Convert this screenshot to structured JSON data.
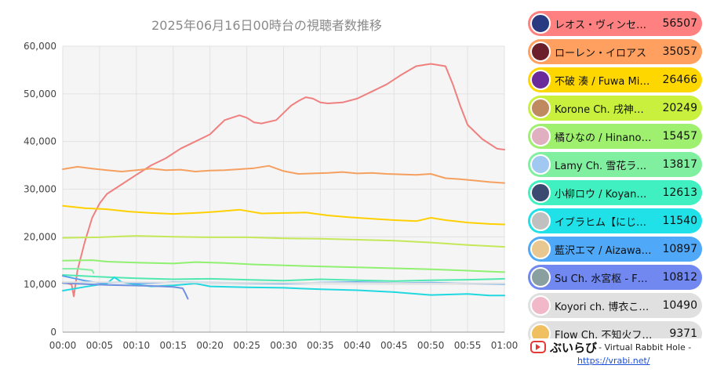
{
  "chart_data": {
    "type": "line",
    "title": "2025年06月16日00時台の視聴者数推移",
    "xlabel": "",
    "ylabel": "",
    "x_ticks": [
      "00:00",
      "00:05",
      "00:10",
      "00:15",
      "00:20",
      "00:25",
      "00:30",
      "00:35",
      "00:40",
      "00:45",
      "00:50",
      "00:55",
      "01:00"
    ],
    "y_ticks": [
      "0",
      "10,000",
      "20,000",
      "30,000",
      "40,000",
      "50,000",
      "60,000"
    ],
    "xlim": [
      0,
      60
    ],
    "ylim": [
      0,
      60000
    ],
    "grid": true,
    "legend_position": "right",
    "series": [
      {
        "name": "レオス・ヴィンセント",
        "color": "#f08080",
        "points": [
          [
            0,
            10500
          ],
          [
            1.2,
            10000
          ],
          [
            1.5,
            7500
          ],
          [
            2,
            13000
          ],
          [
            3,
            19000
          ],
          [
            4,
            24000
          ],
          [
            5,
            27000
          ],
          [
            6,
            29000
          ],
          [
            8,
            31000
          ],
          [
            10,
            33000
          ],
          [
            12,
            35000
          ],
          [
            14,
            36500
          ],
          [
            16,
            38500
          ],
          [
            18,
            40000
          ],
          [
            20,
            41500
          ],
          [
            21,
            43000
          ],
          [
            22,
            44500
          ],
          [
            24,
            45500
          ],
          [
            25,
            45000
          ],
          [
            26,
            44000
          ],
          [
            27,
            43800
          ],
          [
            29,
            44500
          ],
          [
            30,
            46000
          ],
          [
            31,
            47500
          ],
          [
            32,
            48500
          ],
          [
            33,
            49300
          ],
          [
            34,
            49000
          ],
          [
            35,
            48200
          ],
          [
            36,
            48000
          ],
          [
            38,
            48200
          ],
          [
            40,
            49000
          ],
          [
            42,
            50500
          ],
          [
            44,
            52000
          ],
          [
            46,
            54000
          ],
          [
            48,
            55800
          ],
          [
            50,
            56300
          ],
          [
            52,
            55800
          ],
          [
            53,
            52000
          ],
          [
            54,
            47500
          ],
          [
            55,
            43500
          ],
          [
            57,
            40500
          ],
          [
            59,
            38500
          ],
          [
            60,
            38300
          ]
        ]
      },
      {
        "name": "ローレン・イロアス",
        "color": "#f5a060",
        "points": [
          [
            0,
            34200
          ],
          [
            2,
            34700
          ],
          [
            4,
            34300
          ],
          [
            6,
            34000
          ],
          [
            8,
            33700
          ],
          [
            10,
            34000
          ],
          [
            12,
            34300
          ],
          [
            14,
            34000
          ],
          [
            16,
            34100
          ],
          [
            18,
            33700
          ],
          [
            20,
            33900
          ],
          [
            22,
            34000
          ],
          [
            24,
            34200
          ],
          [
            26,
            34400
          ],
          [
            28,
            34900
          ],
          [
            30,
            33800
          ],
          [
            32,
            33200
          ],
          [
            34,
            33300
          ],
          [
            36,
            33400
          ],
          [
            38,
            33600
          ],
          [
            40,
            33300
          ],
          [
            42,
            33400
          ],
          [
            44,
            33200
          ],
          [
            46,
            33100
          ],
          [
            48,
            33000
          ],
          [
            50,
            33200
          ],
          [
            52,
            32300
          ],
          [
            54,
            32100
          ],
          [
            56,
            31800
          ],
          [
            58,
            31500
          ],
          [
            60,
            31300
          ]
        ]
      },
      {
        "name": "不破 湊 / Fuwa Minato",
        "color": "#ffd000",
        "points": [
          [
            0,
            26500
          ],
          [
            3,
            26000
          ],
          [
            6,
            25800
          ],
          [
            9,
            25300
          ],
          [
            12,
            25000
          ],
          [
            15,
            24800
          ],
          [
            18,
            25000
          ],
          [
            21,
            25300
          ],
          [
            24,
            25700
          ],
          [
            27,
            24900
          ],
          [
            30,
            25000
          ],
          [
            33,
            25100
          ],
          [
            36,
            24500
          ],
          [
            39,
            24100
          ],
          [
            42,
            23800
          ],
          [
            45,
            23500
          ],
          [
            48,
            23300
          ],
          [
            50,
            24000
          ],
          [
            52,
            23500
          ],
          [
            55,
            23000
          ],
          [
            58,
            22700
          ],
          [
            60,
            22600
          ]
        ]
      },
      {
        "name": "Korone Ch. 戌神ころね",
        "color": "#c4e858",
        "points": [
          [
            0,
            19800
          ],
          [
            5,
            19900
          ],
          [
            8,
            20100
          ],
          [
            10,
            20200
          ],
          [
            15,
            20000
          ],
          [
            20,
            19900
          ],
          [
            25,
            19900
          ],
          [
            30,
            19700
          ],
          [
            35,
            19600
          ],
          [
            40,
            19400
          ],
          [
            45,
            19200
          ],
          [
            50,
            18800
          ],
          [
            55,
            18300
          ],
          [
            60,
            17900
          ]
        ]
      },
      {
        "name": "橘ひなの / Hinano Tachibana",
        "color": "#90f070",
        "points": [
          [
            0,
            15000
          ],
          [
            4,
            15100
          ],
          [
            6,
            14800
          ],
          [
            10,
            14600
          ],
          [
            15,
            14400
          ],
          [
            18,
            14700
          ],
          [
            22,
            14500
          ],
          [
            26,
            14200
          ],
          [
            30,
            14000
          ],
          [
            35,
            13800
          ],
          [
            40,
            13600
          ],
          [
            45,
            13400
          ],
          [
            50,
            13200
          ],
          [
            55,
            12900
          ],
          [
            60,
            12600
          ]
        ]
      },
      {
        "name": "Lamy Ch. 雪花ラミィ",
        "color": "#80f0a0",
        "points": [
          [
            0,
            13300
          ],
          [
            2,
            13300
          ],
          [
            4,
            13000
          ],
          [
            4.2,
            12400
          ]
        ]
      },
      {
        "name": "小柳ロウ / Koyanagi Rou",
        "color": "#50e8b0",
        "points": [
          [
            0,
            12000
          ],
          [
            5,
            11600
          ],
          [
            10,
            11300
          ],
          [
            15,
            11100
          ],
          [
            20,
            11200
          ],
          [
            25,
            11000
          ],
          [
            30,
            10800
          ],
          [
            35,
            11100
          ],
          [
            40,
            10900
          ],
          [
            45,
            10700
          ],
          [
            50,
            10900
          ],
          [
            55,
            11000
          ],
          [
            60,
            11200
          ]
        ]
      },
      {
        "name": "イブラヒム【にじさんじ】",
        "color": "#20d8e0",
        "points": [
          [
            0,
            8700
          ],
          [
            3,
            9500
          ],
          [
            6,
            10200
          ],
          [
            7,
            11500
          ],
          [
            8,
            10500
          ],
          [
            10,
            10000
          ],
          [
            12,
            9600
          ],
          [
            15,
            9800
          ],
          [
            18,
            10200
          ],
          [
            20,
            9600
          ],
          [
            25,
            9400
          ],
          [
            30,
            9300
          ],
          [
            35,
            9000
          ],
          [
            40,
            8800
          ],
          [
            45,
            8400
          ],
          [
            50,
            7800
          ],
          [
            55,
            8000
          ],
          [
            58,
            7700
          ],
          [
            60,
            7700
          ]
        ]
      },
      {
        "name": "藍沢エマ / Aizawa Ema",
        "color": "#50a0f0",
        "points": [
          [
            0,
            11800
          ],
          [
            3,
            10800
          ],
          [
            5,
            10300
          ],
          [
            8,
            10500
          ],
          [
            10,
            10200
          ],
          [
            15,
            10500
          ],
          [
            20,
            10400
          ],
          [
            25,
            10300
          ],
          [
            30,
            10200
          ],
          [
            35,
            10400
          ],
          [
            40,
            10500
          ],
          [
            45,
            10300
          ],
          [
            50,
            10400
          ],
          [
            55,
            10200
          ],
          [
            60,
            10100
          ]
        ]
      },
      {
        "name": "Su Ch. 水宮枢 - FLOW GLOW",
        "color": "#7090e0",
        "points": [
          [
            0,
            10300
          ],
          [
            3,
            10100
          ],
          [
            6,
            9900
          ],
          [
            9,
            9800
          ],
          [
            12,
            9700
          ],
          [
            15,
            9500
          ],
          [
            16.3,
            9200
          ],
          [
            16.7,
            8000
          ],
          [
            17,
            7000
          ]
        ]
      },
      {
        "name": "Koyori ch. 博衣こより - holoX -",
        "color": "#e0e0e0",
        "points": [
          [
            0,
            10500
          ],
          [
            20,
            10400
          ],
          [
            40,
            10300
          ],
          [
            60,
            10200
          ]
        ]
      }
    ],
    "legend": [
      {
        "name": "レオス・ヴィンセント",
        "value": "56507",
        "color": "#ff8080",
        "avatar": "#2a3a80"
      },
      {
        "name": "ローレン・イロアス",
        "value": "35057",
        "color": "#ffa060",
        "avatar": "#6a1f2a"
      },
      {
        "name": "不破 湊 / Fuwa Minato",
        "value": "26466",
        "color": "#ffd700",
        "avatar": "#6a2a9a"
      },
      {
        "name": "Korone Ch. 戌神ころね",
        "value": "20249",
        "color": "#c8f03c",
        "avatar": "#c08a60"
      },
      {
        "name": "橘ひなの / Hinano Tachibana",
        "value": "15457",
        "color": "#a0f070",
        "avatar": "#e0b0c0"
      },
      {
        "name": "Lamy Ch. 雪花ラミィ",
        "value": "13817",
        "color": "#80f0a0",
        "avatar": "#a0c8f0"
      },
      {
        "name": "小柳ロウ / Koyanagi Rou",
        "value": "12613",
        "color": "#40f0c0",
        "avatar": "#3a4a70"
      },
      {
        "name": "イブラヒム【にじさんじ】",
        "value": "11540",
        "color": "#20e0e8",
        "avatar": "#c0c0c0"
      },
      {
        "name": "藍沢エマ / Aizawa Ema",
        "value": "10897",
        "color": "#50a8f8",
        "avatar": "#e8c890"
      },
      {
        "name": "Su Ch. 水宮枢 - FLOW GLOW",
        "value": "10812",
        "color": "#7088f0",
        "avatar": "#8aa0a0"
      },
      {
        "name": "Koyori ch. 博衣こより - holoX -",
        "value": "10490",
        "color": "#e0e0e0",
        "avatar": "#f0b8c8"
      },
      {
        "name": "Flow Ch. 不知火フレア",
        "value": "9371",
        "color": "#e0e0e0",
        "avatar": "#f0c060"
      }
    ]
  },
  "brand": {
    "name": "ぶいらび",
    "subtitle": "- Virtual Rabbit Hole -",
    "url": "https://vrabi.net/"
  }
}
